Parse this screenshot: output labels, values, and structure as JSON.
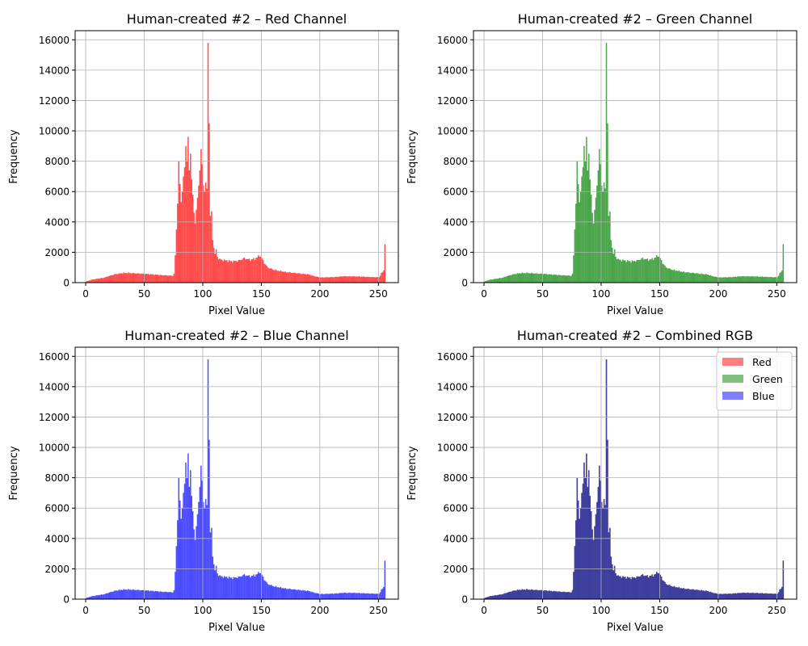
{
  "chart_data": [
    {
      "type": "bar",
      "title": "Human-created #2 – Red Channel",
      "xlabel": "Pixel Value",
      "ylabel": "Frequency",
      "xlim": [
        -9,
        267
      ],
      "ylim": [
        0,
        16600
      ],
      "xticks": [
        0,
        50,
        100,
        150,
        200,
        250
      ],
      "yticks": [
        0,
        2000,
        4000,
        6000,
        8000,
        10000,
        12000,
        14000,
        16000
      ],
      "grid": true,
      "series": [
        {
          "color": "#ff0000",
          "alpha": 0.7
        }
      ]
    },
    {
      "type": "bar",
      "title": "Human-created #2 – Green Channel",
      "xlabel": "Pixel Value",
      "ylabel": "Frequency",
      "xlim": [
        -9,
        267
      ],
      "ylim": [
        0,
        16600
      ],
      "xticks": [
        0,
        50,
        100,
        150,
        200,
        250
      ],
      "yticks": [
        0,
        2000,
        4000,
        6000,
        8000,
        10000,
        12000,
        14000,
        16000
      ],
      "grid": true,
      "series": [
        {
          "color": "#008000",
          "alpha": 0.7
        }
      ]
    },
    {
      "type": "bar",
      "title": "Human-created #2 – Blue Channel",
      "xlabel": "Pixel Value",
      "ylabel": "Frequency",
      "xlim": [
        -9,
        267
      ],
      "ylim": [
        0,
        16600
      ],
      "xticks": [
        0,
        50,
        100,
        150,
        200,
        250
      ],
      "yticks": [
        0,
        2000,
        4000,
        6000,
        8000,
        10000,
        12000,
        14000,
        16000
      ],
      "grid": true,
      "series": [
        {
          "color": "#0000ff",
          "alpha": 0.7
        }
      ]
    },
    {
      "type": "bar",
      "title": "Human-created #2 – Combined RGB",
      "xlabel": "Pixel Value",
      "ylabel": "Frequency",
      "xlim": [
        -9,
        267
      ],
      "ylim": [
        0,
        16600
      ],
      "xticks": [
        0,
        50,
        100,
        150,
        200,
        250
      ],
      "yticks": [
        0,
        2000,
        4000,
        6000,
        8000,
        10000,
        12000,
        14000,
        16000
      ],
      "grid": true,
      "legend": "top-right",
      "series": [
        {
          "name": "Red",
          "color": "#ff0000",
          "alpha": 0.5
        },
        {
          "name": "Green",
          "color": "#008000",
          "alpha": 0.5
        },
        {
          "name": "Blue",
          "color": "#0000ff",
          "alpha": 0.5
        }
      ]
    }
  ],
  "histogram": {
    "bins": "0-255 (256 bins, width 1)",
    "anchors": [
      [
        0,
        80
      ],
      [
        5,
        200
      ],
      [
        10,
        260
      ],
      [
        15,
        320
      ],
      [
        20,
        450
      ],
      [
        25,
        560
      ],
      [
        30,
        620
      ],
      [
        35,
        640
      ],
      [
        40,
        620
      ],
      [
        45,
        600
      ],
      [
        50,
        580
      ],
      [
        55,
        550
      ],
      [
        60,
        520
      ],
      [
        65,
        490
      ],
      [
        70,
        470
      ],
      [
        74,
        450
      ],
      [
        75,
        600
      ],
      [
        76,
        1800
      ],
      [
        77,
        3500
      ],
      [
        78,
        5200
      ],
      [
        79,
        8000
      ],
      [
        80,
        6500
      ],
      [
        81,
        5300
      ],
      [
        82,
        6000
      ],
      [
        83,
        7000
      ],
      [
        84,
        7600
      ],
      [
        85,
        9000
      ],
      [
        86,
        8000
      ],
      [
        87,
        9600
      ],
      [
        88,
        7400
      ],
      [
        89,
        8500
      ],
      [
        90,
        6800
      ],
      [
        91,
        5800
      ],
      [
        92,
        4600
      ],
      [
        93,
        3900
      ],
      [
        94,
        4800
      ],
      [
        95,
        5600
      ],
      [
        96,
        6400
      ],
      [
        97,
        7400
      ],
      [
        98,
        8800
      ],
      [
        99,
        7800
      ],
      [
        100,
        6400
      ],
      [
        101,
        6000
      ],
      [
        102,
        6600
      ],
      [
        103,
        6200
      ],
      [
        104,
        15800
      ],
      [
        105,
        10500
      ],
      [
        106,
        4400
      ],
      [
        107,
        4700
      ],
      [
        108,
        2800
      ],
      [
        109,
        2300
      ],
      [
        110,
        1900
      ],
      [
        111,
        2200
      ],
      [
        112,
        1700
      ],
      [
        113,
        1600
      ],
      [
        115,
        1500
      ],
      [
        120,
        1450
      ],
      [
        125,
        1400
      ],
      [
        130,
        1450
      ],
      [
        135,
        1600
      ],
      [
        140,
        1500
      ],
      [
        145,
        1600
      ],
      [
        148,
        1800
      ],
      [
        150,
        1600
      ],
      [
        152,
        1300
      ],
      [
        155,
        1000
      ],
      [
        160,
        850
      ],
      [
        170,
        700
      ],
      [
        180,
        620
      ],
      [
        190,
        540
      ],
      [
        195,
        420
      ],
      [
        200,
        340
      ],
      [
        210,
        360
      ],
      [
        220,
        420
      ],
      [
        230,
        410
      ],
      [
        240,
        380
      ],
      [
        250,
        350
      ],
      [
        252,
        600
      ],
      [
        253,
        700
      ],
      [
        254,
        800
      ],
      [
        255,
        2650
      ]
    ]
  }
}
